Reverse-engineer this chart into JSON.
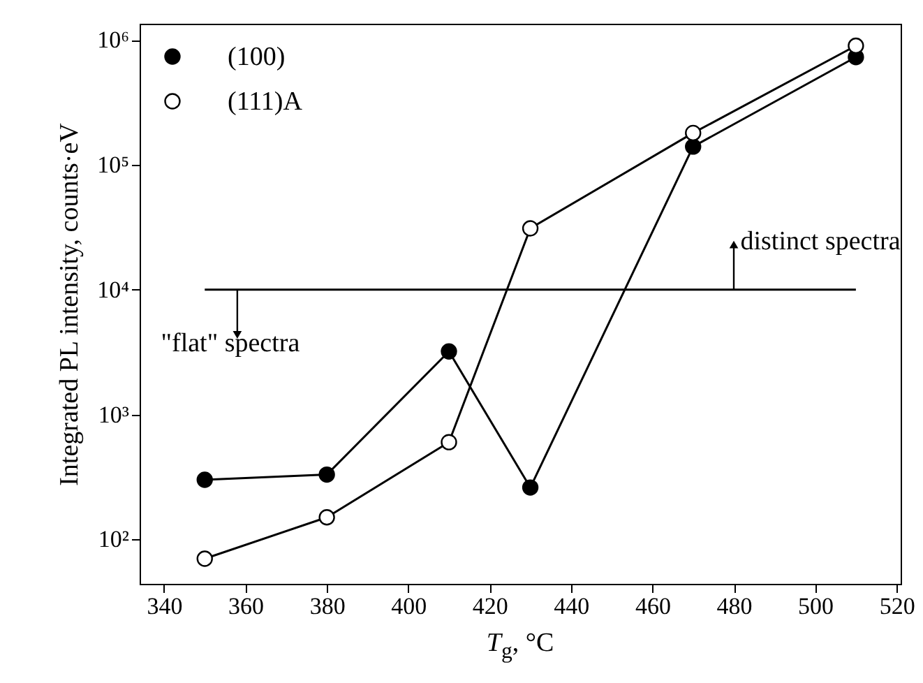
{
  "chart_data": {
    "type": "line",
    "xlabel": "T$_{g}$, °C",
    "ylabel": "Integrated PL intensity, counts·eV",
    "x": [
      350,
      380,
      410,
      430,
      470,
      510
    ],
    "series": [
      {
        "name": "(100)",
        "color": "#000000",
        "values": [
          300,
          330,
          3200,
          260,
          140000,
          730000
        ]
      },
      {
        "name": "(111)A",
        "color": "#000000",
        "values": [
          70,
          150,
          600,
          31000,
          180000,
          900000
        ]
      },
      {
        "color": "#000000",
        "x": [
          350,
          510
        ],
        "values": [
          10000,
          10000
        ],
        "marker": "none"
      }
    ],
    "annotations": [
      {
        "text": "distinct spectra",
        "x": 480,
        "y": 10000
      },
      {
        "text": "\"flat\" spectra",
        "x": 358,
        "y": 10000
      }
    ],
    "xlim": [
      334,
      521
    ],
    "xticks": [
      340,
      360,
      380,
      400,
      420,
      440,
      460,
      480,
      500,
      520
    ],
    "ylim": [
      44,
      1350000
    ],
    "yticks": [
      {
        "value": 100,
        "label": "10²"
      },
      {
        "value": 1000,
        "label": "10³"
      },
      {
        "value": 10000,
        "label": "10⁴"
      },
      {
        "value": 100000,
        "label": "10⁵"
      },
      {
        "value": 1000000,
        "label": "10⁶"
      }
    ],
    "log": "y",
    "grid": false,
    "legend": "top left",
    "marker": "circle",
    "line_style": "solid"
  }
}
